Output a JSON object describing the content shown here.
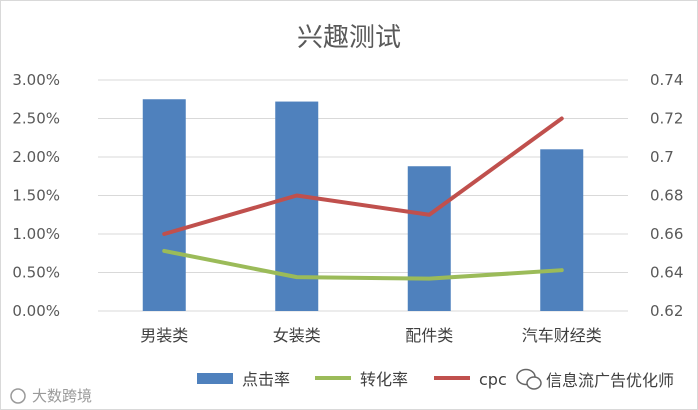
{
  "chart_data": {
    "type": "bar",
    "title": "兴趣测试",
    "categories": [
      "男装类",
      "女装类",
      "配件类",
      "汽车财经类"
    ],
    "y_left": {
      "ticks": [
        "0.00%",
        "0.50%",
        "1.00%",
        "1.50%",
        "2.00%",
        "2.50%",
        "3.00%"
      ],
      "ylim": [
        0,
        3.0
      ]
    },
    "y_right": {
      "ticks": [
        "0.62",
        "0.64",
        "0.66",
        "0.68",
        "0.7",
        "0.72",
        "0.74"
      ],
      "ylim": [
        0.62,
        0.74
      ]
    },
    "series": [
      {
        "name": "点击率",
        "kind": "bar",
        "axis": "left",
        "color": "#4f81bd",
        "values": [
          2.75,
          2.72,
          1.88,
          2.1
        ]
      },
      {
        "name": "转化率",
        "kind": "line",
        "axis": "left",
        "color": "#9bbb59",
        "values": [
          0.78,
          0.44,
          0.42,
          0.53
        ]
      },
      {
        "name": "cpc",
        "kind": "line",
        "axis": "right",
        "color": "#c0504d",
        "values": [
          0.66,
          0.68,
          0.67,
          0.72
        ]
      }
    ],
    "grid": true,
    "legend_position": "bottom"
  },
  "watermark_left": "大数跨境",
  "watermark_right": "信息流广告优化师"
}
